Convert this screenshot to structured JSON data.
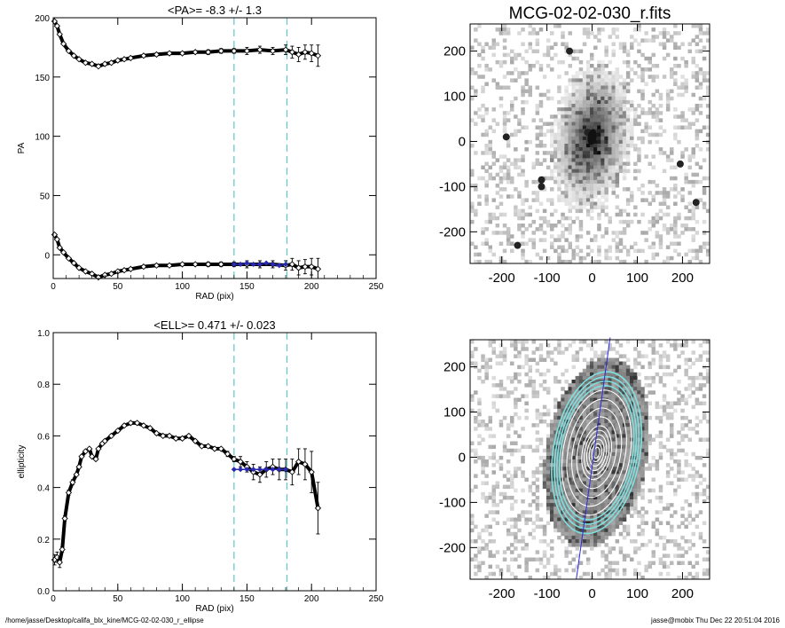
{
  "colors": {
    "dashed_guides": "#5fc7c7",
    "fit_points": "#2a2ab0",
    "data_points": "#000000",
    "ellipse_outer": "#7fe0e0",
    "ellipse_inner": "#ffffff",
    "major_axis_line": "#2a2ae0"
  },
  "footer": {
    "path": "/home/jasse/Desktop/califa_blx_kine/MCG-02-02-030_r_ellipse",
    "user_date": "jasse@mobix  Thu Dec 22 20:51:04 2016"
  },
  "chart_data": [
    {
      "type": "scatter",
      "title": "<PA>=  -8.3 +/-   1.3",
      "xlabel": "RAD (pix)",
      "ylabel": "PA",
      "xlim": [
        0,
        250
      ],
      "ylim": [
        -20,
        200
      ],
      "xticks": [
        0,
        50,
        100,
        150,
        200,
        250
      ],
      "yticks": [
        0,
        50,
        100,
        150,
        200
      ],
      "guides_x": [
        140,
        181
      ],
      "series": [
        {
          "x": [
            1,
            3,
            5,
            8,
            12,
            16,
            20,
            25,
            30,
            35,
            40,
            45,
            50,
            55,
            60,
            70,
            80,
            90,
            100,
            110,
            120,
            130,
            140,
            150,
            160,
            170,
            180,
            185,
            190,
            195,
            200,
            205
          ],
          "y": [
            197,
            193,
            186,
            178,
            172,
            168,
            165,
            162,
            161,
            159,
            161,
            162,
            164,
            165,
            166,
            168,
            169,
            170,
            170,
            171,
            171,
            172,
            172,
            172,
            173,
            172,
            173,
            171,
            169,
            171,
            170,
            168
          ],
          "err": [
            0,
            0,
            0,
            0,
            0,
            0,
            0,
            0,
            0,
            0,
            0,
            0,
            0,
            0,
            0,
            1,
            1,
            1,
            1,
            1,
            2,
            2,
            2,
            3,
            3,
            3,
            4,
            5,
            6,
            6,
            7,
            9
          ]
        },
        {
          "x": [
            1,
            3,
            5,
            8,
            12,
            16,
            20,
            25,
            30,
            35,
            40,
            45,
            50,
            55,
            60,
            70,
            80,
            90,
            100,
            110,
            120,
            130,
            140,
            150,
            160,
            170,
            180,
            185,
            190,
            195,
            200,
            205
          ],
          "y": [
            17,
            13,
            6,
            2,
            -3,
            -7,
            -11,
            -14,
            -16,
            -19,
            -17,
            -16,
            -14,
            -13,
            -12,
            -10,
            -9,
            -9,
            -8,
            -8,
            -8,
            -8,
            -8,
            -8,
            -8,
            -8,
            -9,
            -8,
            -11,
            -10,
            -10,
            -12
          ],
          "err": [
            0,
            0,
            0,
            0,
            0,
            0,
            0,
            0,
            0,
            0,
            0,
            0,
            0,
            0,
            0,
            1,
            1,
            1,
            1,
            1,
            2,
            2,
            2,
            3,
            3,
            3,
            4,
            5,
            6,
            6,
            7,
            9
          ]
        }
      ],
      "fit": {
        "x": [
          140,
          145,
          150,
          155,
          160,
          165,
          170,
          175,
          180
        ],
        "y": [
          -8,
          -8,
          -7,
          -8,
          -8,
          -7,
          -8,
          -9,
          -8
        ]
      }
    },
    {
      "type": "scatter",
      "title": "<ELL>= 0.471 +/-  0.023",
      "xlabel": "RAD (pix)",
      "ylabel": "ellipticity",
      "xlim": [
        0,
        250
      ],
      "ylim": [
        0.0,
        1.0
      ],
      "xticks": [
        0,
        50,
        100,
        150,
        200,
        250
      ],
      "yticks": [
        "0.0",
        "0.2",
        "0.4",
        "0.6",
        "0.8",
        "1.0"
      ],
      "guides_x": [
        140,
        181
      ],
      "series": [
        {
          "x": [
            1,
            3,
            5,
            7,
            9,
            12,
            15,
            18,
            20,
            22,
            25,
            28,
            30,
            33,
            35,
            38,
            40,
            45,
            50,
            55,
            60,
            65,
            70,
            75,
            80,
            85,
            90,
            95,
            100,
            105,
            110,
            115,
            120,
            125,
            130,
            135,
            140,
            145,
            150,
            155,
            160,
            165,
            170,
            175,
            180,
            185,
            190,
            195,
            200,
            205
          ],
          "y": [
            0.12,
            0.13,
            0.11,
            0.16,
            0.28,
            0.38,
            0.42,
            0.45,
            0.48,
            0.52,
            0.54,
            0.55,
            0.52,
            0.51,
            0.55,
            0.57,
            0.58,
            0.6,
            0.62,
            0.64,
            0.65,
            0.65,
            0.64,
            0.63,
            0.61,
            0.6,
            0.6,
            0.59,
            0.59,
            0.6,
            0.58,
            0.56,
            0.56,
            0.55,
            0.55,
            0.53,
            0.51,
            0.5,
            0.48,
            0.46,
            0.45,
            0.47,
            0.48,
            0.47,
            0.47,
            0.46,
            0.5,
            0.49,
            0.46,
            0.32
          ],
          "err": [
            0.02,
            0.02,
            0.02,
            0.01,
            0.01,
            0.01,
            0.01,
            0.005,
            0.005,
            0.005,
            0.005,
            0.005,
            0.005,
            0.005,
            0.005,
            0.005,
            0.005,
            0.005,
            0.005,
            0.005,
            0.005,
            0.005,
            0.005,
            0.005,
            0.005,
            0.005,
            0.005,
            0.005,
            0.005,
            0.005,
            0.005,
            0.005,
            0.005,
            0.005,
            0.005,
            0.01,
            0.01,
            0.02,
            0.02,
            0.03,
            0.03,
            0.03,
            0.03,
            0.04,
            0.04,
            0.05,
            0.05,
            0.06,
            0.08,
            0.1
          ]
        }
      ],
      "fit": {
        "x": [
          140,
          145,
          150,
          155,
          160,
          165,
          170,
          175,
          180
        ],
        "y": [
          0.47,
          0.47,
          0.47,
          0.47,
          0.47,
          0.47,
          0.47,
          0.47,
          0.47
        ]
      }
    },
    {
      "type": "heatmap",
      "title": "MCG-02-02-030_r.fits",
      "xlim": [
        -270,
        260
      ],
      "ylim": [
        -270,
        260
      ],
      "xticks": [
        -200,
        -100,
        0,
        100,
        200
      ],
      "yticks": [
        -200,
        -100,
        0,
        100,
        200
      ],
      "galaxy": {
        "center": [
          0,
          10
        ],
        "semi_major": 95,
        "semi_minor": 52,
        "pa_deg": 10
      },
      "stars": [
        [
          -112,
          -85
        ],
        [
          -112,
          -100
        ],
        [
          195,
          -50
        ],
        [
          -10,
          20
        ],
        [
          -190,
          10
        ],
        [
          230,
          -135
        ],
        [
          -50,
          200
        ],
        [
          -165,
          -230
        ]
      ]
    },
    {
      "type": "heatmap",
      "title": "",
      "xlim": [
        -270,
        260
      ],
      "ylim": [
        -270,
        260
      ],
      "xticks": [
        -200,
        -100,
        0,
        100,
        200
      ],
      "yticks": [
        -200,
        -100,
        0,
        100,
        200
      ],
      "galaxy": {
        "center": [
          10,
          10
        ],
        "semi_major": 170,
        "semi_minor": 90,
        "pa_deg": 10
      },
      "ellipse_radii": [
        181,
        170,
        160,
        150,
        140,
        120,
        100,
        80,
        60,
        50,
        40,
        30,
        20,
        12
      ],
      "axis_line": {
        "x": [
          -35,
          40
        ],
        "y": [
          -270,
          265
        ]
      }
    }
  ]
}
